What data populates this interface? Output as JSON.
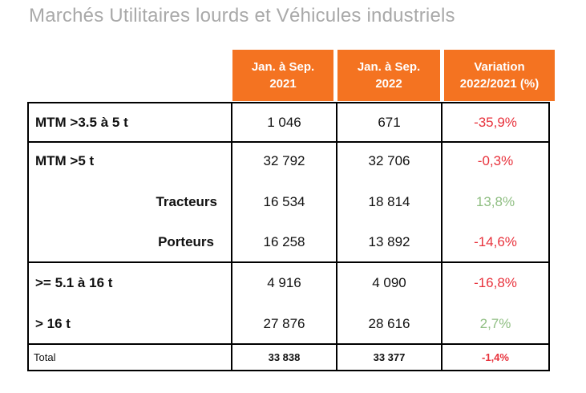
{
  "title": "Marchés Utilitaires lourds et Véhicules industriels",
  "headers": [
    {
      "line1": "Jan. à  Sep.",
      "line2": "2021"
    },
    {
      "line1": "Jan. à  Sep.",
      "line2": "2022"
    },
    {
      "line1": "Variation",
      "line2": "2022/2021  (%)"
    }
  ],
  "rows": [
    {
      "label": "MTM >3.5 à 5 t",
      "v2021": "1 046",
      "v2022": "671",
      "variation": "-35,9%"
    },
    {
      "label": "MTM >5 t",
      "v2021": "32 792",
      "v2022": "32 706",
      "variation": "-0,3%"
    },
    {
      "label": "Tracteurs",
      "v2021": "16 534",
      "v2022": "18 814",
      "variation": "13,8%"
    },
    {
      "label": "Porteurs",
      "v2021": "16 258",
      "v2022": "13 892",
      "variation": "-14,6%"
    },
    {
      "label": ">= 5.1 à 16 t",
      "v2021": "4 916",
      "v2022": "4 090",
      "variation": "-16,8%"
    },
    {
      "label": "> 16 t",
      "v2021": "27 876",
      "v2022": "28 616",
      "variation": "2,7%"
    }
  ],
  "total": {
    "label": "Total",
    "v2021": "33 838",
    "v2022": "33 377",
    "variation": "-1,4%"
  },
  "colors": {
    "header_bg": "#f47321",
    "negative": "#e8323c",
    "positive": "#8fbe82",
    "title": "#a9a9a9"
  }
}
